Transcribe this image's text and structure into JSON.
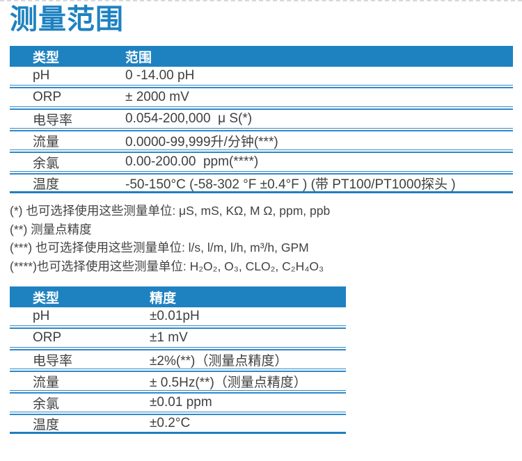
{
  "page": {
    "title": "测量范围"
  },
  "colors": {
    "accent_blue": "#1e82c1",
    "line_blue": "#2f88c9",
    "thick_blue": "#1e7fc0",
    "text": "#3f3f3f"
  },
  "range_table": {
    "headers": [
      "类型",
      "范围"
    ],
    "rows": [
      {
        "type": "pH",
        "value": "0 -14.00 pH"
      },
      {
        "type": "ORP",
        "value": "± 2000 mV"
      },
      {
        "type": "电导率",
        "value": "0.054-200,000  μ S(*)"
      },
      {
        "type": "流量",
        "value": "0.0000-99,999升/分钟(***)"
      },
      {
        "type": "余氯",
        "value": "0.00-200.00  ppm(****)"
      },
      {
        "type": "温度",
        "value": "-50-150°C (-58-302 °F ±0.4°F ) (带 PT100/PT1000探头 )"
      }
    ]
  },
  "footnotes": [
    "(*) 也可选择使用这些测量单位: μS, mS, KΩ, M Ω, ppm, ppb",
    "(**) 测量点精度",
    "(***) 也可选择使用这些测量单位: l/s, l/m, l/h, m³/h, GPM",
    "(****)也可选择使用这些测量单位: H₂O₂, O₃, CLO₂, C₂H₄O₃"
  ],
  "accuracy_table": {
    "headers": [
      "类型",
      "精度"
    ],
    "rows": [
      {
        "type": "pH",
        "value": "±0.01pH"
      },
      {
        "type": "ORP",
        "value": "±1 mV"
      },
      {
        "type": "电导率",
        "value": "±2%(**)（测量点精度）"
      },
      {
        "type": "流量",
        "value": "± 0.5Hz(**)（测量点精度）"
      },
      {
        "type": "余氯",
        "value": "±0.01 ppm"
      },
      {
        "type": "温度",
        "value": "±0.2°C"
      }
    ]
  }
}
